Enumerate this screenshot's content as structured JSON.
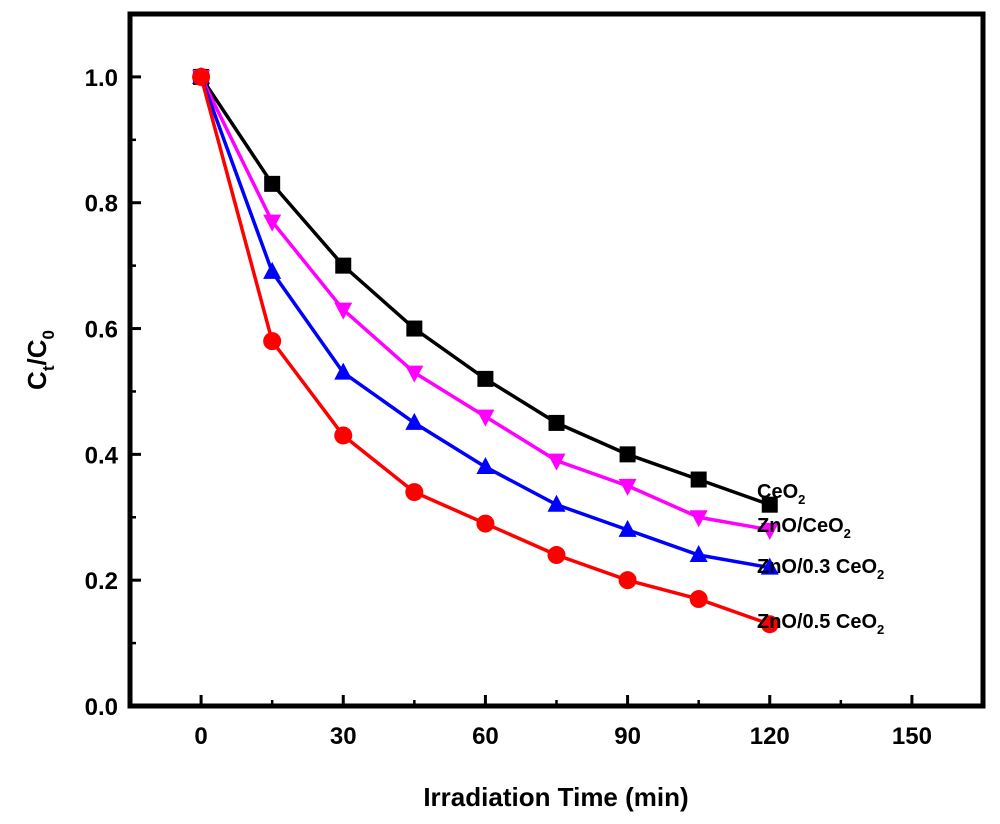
{
  "chart_data": {
    "type": "line",
    "xlabel": "Irradiation Time (min)",
    "ylabel_main": "C",
    "ylabel_sub1": "t",
    "ylabel_slash": "/C",
    "ylabel_sub2": "0",
    "xlim": [
      -15,
      165
    ],
    "ylim": [
      0,
      1.1
    ],
    "x_ticks": [
      0,
      30,
      60,
      90,
      120,
      150
    ],
    "y_ticks": [
      0.0,
      0.2,
      0.4,
      0.6,
      0.8,
      1.0
    ],
    "x_tick_labels": [
      "0",
      "30",
      "60",
      "90",
      "120",
      "150"
    ],
    "y_tick_labels": [
      "0.0",
      "0.2",
      "0.4",
      "0.6",
      "0.8",
      "1.0"
    ],
    "grid": false,
    "x": [
      0,
      15,
      30,
      45,
      60,
      75,
      90,
      105,
      120
    ],
    "series": [
      {
        "label_main": "CeO",
        "label_sub": "2",
        "color": "#000000",
        "marker": "square",
        "values": [
          1.0,
          0.83,
          0.7,
          0.6,
          0.52,
          0.45,
          0.4,
          0.36,
          0.32
        ]
      },
      {
        "label_main": "ZnO/CeO",
        "label_sub": "2",
        "color": "#ff00ff",
        "marker": "triangle-down",
        "values": [
          1.0,
          0.77,
          0.63,
          0.53,
          0.46,
          0.39,
          0.35,
          0.3,
          0.28
        ]
      },
      {
        "label_main": "ZnO/0.3 CeO",
        "label_sub": "2",
        "color": "#0000ff",
        "marker": "triangle-up",
        "values": [
          1.0,
          0.69,
          0.53,
          0.45,
          0.38,
          0.32,
          0.28,
          0.24,
          0.22
        ]
      },
      {
        "label_main": "ZnO/0.5 CeO",
        "label_sub": "2",
        "color": "#ff0000",
        "marker": "circle",
        "values": [
          1.0,
          0.58,
          0.43,
          0.34,
          0.29,
          0.24,
          0.2,
          0.17,
          0.13
        ]
      }
    ]
  }
}
